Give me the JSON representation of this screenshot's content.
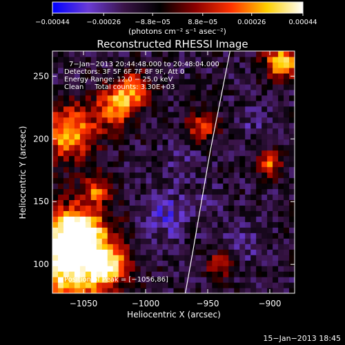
{
  "chart_data": {
    "type": "heatmap",
    "title": "Reconstructed RHESSI Image",
    "xlabel": "Heliocentric X (arcsec)",
    "ylabel": "Heliocentric Y (arcsec)",
    "xlim": [
      -1075,
      -880
    ],
    "ylim": [
      77,
      270
    ],
    "xticks": [
      {
        "value": -1050,
        "label": "−1050"
      },
      {
        "value": -1000,
        "label": "−1000"
      },
      {
        "value": -950,
        "label": "−950"
      },
      {
        "value": -900,
        "label": "−900"
      }
    ],
    "yticks": [
      {
        "value": 100,
        "label": "100"
      },
      {
        "value": 150,
        "label": "150"
      },
      {
        "value": 200,
        "label": "200"
      },
      {
        "value": 250,
        "label": "250"
      }
    ],
    "colorbar": {
      "min": -0.00044,
      "max": 0.00044,
      "ticks": [
        {
          "value": -0.00044,
          "label": "−0.00044"
        },
        {
          "value": -0.00026,
          "label": "−0.00026"
        },
        {
          "value": -8.8e-05,
          "label": "−8.8e−05"
        },
        {
          "value": 8.8e-05,
          "label": "8.8e−05"
        },
        {
          "value": 0.00026,
          "label": "0.00026"
        },
        {
          "value": 0.00044,
          "label": "0.00044"
        }
      ],
      "unit": "(photons cm⁻² s⁻¹ asec⁻²)",
      "colors": [
        "#0000ff",
        "#6a3bd6",
        "#3a1448",
        "#000000",
        "#8b0000",
        "#ff3300",
        "#ffd000",
        "#ffffff"
      ]
    },
    "annotations": [
      "7−Jan−2013 20:44:48.000 to 20:48:04.000",
      "Detectors: 3F 5F 6F 7F 8F 9F, Att 0",
      "Energy Range: 12.0 − 25.0 keV",
      "Clean     Total counts: 3.30E+03"
    ],
    "peak_label": "Position of Peak = [−1056,86]",
    "limb_curve": [
      [
        -968,
        77
      ],
      [
        -962,
        110
      ],
      [
        -955,
        150
      ],
      [
        -948,
        190
      ],
      [
        -940,
        230
      ],
      [
        -932,
        270
      ]
    ],
    "hot_regions": [
      {
        "x": -1060,
        "y": 100,
        "radius": 35,
        "level": 1.0
      },
      {
        "x": -1055,
        "y": 125,
        "radius": 20,
        "level": 0.85
      },
      {
        "x": -1062,
        "y": 205,
        "radius": 22,
        "level": 0.7
      },
      {
        "x": -1025,
        "y": 225,
        "radius": 16,
        "level": 0.55
      },
      {
        "x": -1010,
        "y": 240,
        "radius": 14,
        "level": 0.5
      },
      {
        "x": -1030,
        "y": 100,
        "radius": 14,
        "level": 0.45
      },
      {
        "x": -1040,
        "y": 160,
        "radius": 12,
        "level": 0.4
      },
      {
        "x": -890,
        "y": 262,
        "radius": 14,
        "level": 0.75
      },
      {
        "x": -900,
        "y": 180,
        "radius": 10,
        "level": 0.45
      },
      {
        "x": -955,
        "y": 210,
        "radius": 12,
        "level": 0.4
      },
      {
        "x": -940,
        "y": 100,
        "radius": 10,
        "level": 0.35
      }
    ],
    "cold_regions": [
      {
        "x": -985,
        "y": 140,
        "radius": 18,
        "level": -0.7
      },
      {
        "x": -970,
        "y": 180,
        "radius": 14,
        "level": -0.55
      },
      {
        "x": -925,
        "y": 115,
        "radius": 16,
        "level": -0.55
      },
      {
        "x": -915,
        "y": 215,
        "radius": 12,
        "level": -0.5
      },
      {
        "x": -950,
        "y": 150,
        "radius": 12,
        "level": -0.5
      }
    ]
  },
  "footer": {
    "timestamp": "15−Jan−2013 18:45"
  }
}
